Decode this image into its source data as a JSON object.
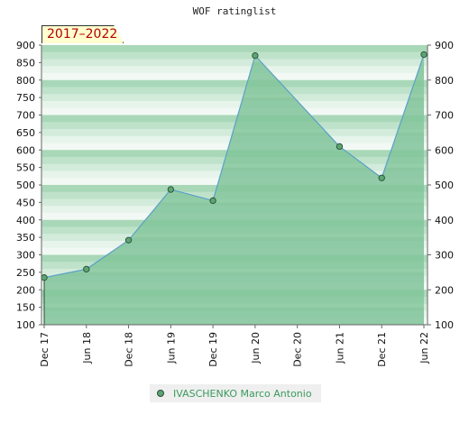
{
  "chart_data": {
    "type": "area",
    "title": "WOF ratinglist",
    "badge": "2017–2022",
    "categories": [
      "Dec 17",
      "Jun 18",
      "Dec 18",
      "Jun 19",
      "Dec 19",
      "Jun 20",
      "Dec 20",
      "Jun 21",
      "Dec 21",
      "Jun 22"
    ],
    "series": [
      {
        "name": "IVASCHENKO Marco Antonio",
        "points": [
          {
            "x": "Dec 17",
            "y": 235
          },
          {
            "x": "Jun 18",
            "y": 259
          },
          {
            "x": "Dec 18",
            "y": 342
          },
          {
            "x": "Jun 19",
            "y": 487
          },
          {
            "x": "Dec 19",
            "y": 455
          },
          {
            "x": "Jun 20",
            "y": 870
          },
          {
            "x": "Jun 21",
            "y": 610
          },
          {
            "x": "Dec 21",
            "y": 520
          },
          {
            "x": "Jun 22",
            "y": 873
          }
        ]
      }
    ],
    "ylim": [
      100,
      900
    ],
    "yticks_left": [
      100,
      150,
      200,
      250,
      300,
      350,
      400,
      450,
      500,
      550,
      600,
      650,
      700,
      750,
      800,
      850,
      900
    ],
    "yticks_right": [
      100,
      200,
      300,
      400,
      500,
      600,
      700,
      800,
      900
    ],
    "legend_position": "bottom",
    "colors": {
      "area": "#7cc295",
      "line": "#5aa0c8",
      "marker": "#5aa672",
      "band_dark": "#8fcaa3",
      "band_light": "#eef7f0",
      "legend_text": "#3a9a5e"
    }
  }
}
